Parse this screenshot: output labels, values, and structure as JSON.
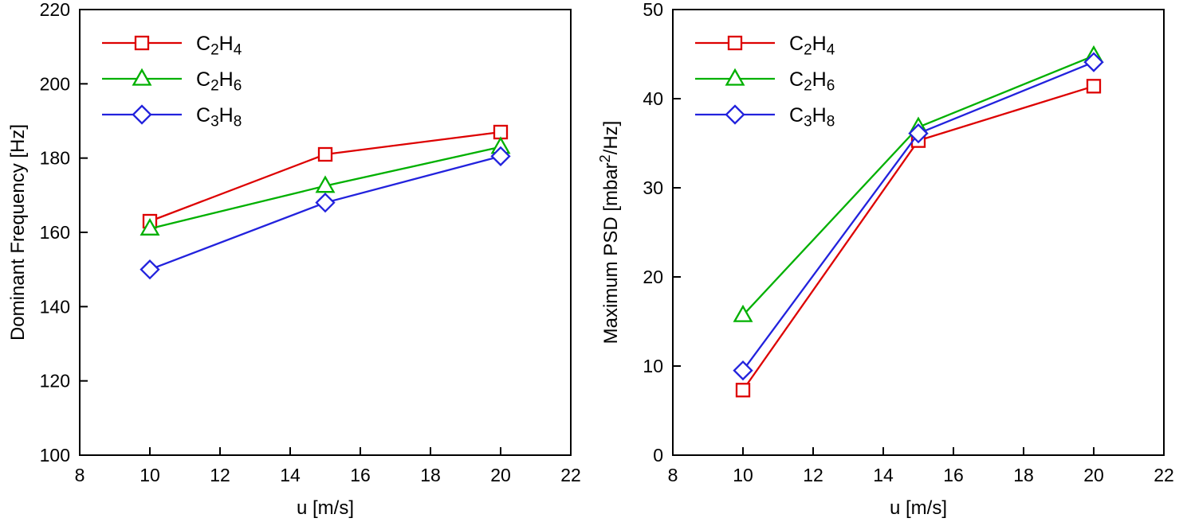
{
  "chart_data": [
    {
      "type": "line",
      "title": "",
      "xlabel": "u [m/s]",
      "ylabel": "Dominant Frequency [Hz]",
      "xlim": [
        8,
        22
      ],
      "ylim": [
        100,
        220
      ],
      "xticks": [
        8,
        10,
        12,
        14,
        16,
        18,
        20,
        22
      ],
      "yticks": [
        100,
        120,
        140,
        160,
        180,
        200,
        220
      ],
      "x": [
        10,
        15,
        20
      ],
      "series": [
        {
          "name": "C2H4",
          "marker": "square",
          "color": "#dd0000",
          "values": [
            163,
            181,
            187
          ]
        },
        {
          "name": "C2H6",
          "marker": "triangle",
          "color": "#00b000",
          "values": [
            161,
            172.5,
            183
          ]
        },
        {
          "name": "C3H8",
          "marker": "diamond",
          "color": "#2222dd",
          "values": [
            150,
            168,
            180.5
          ]
        }
      ],
      "legend_position": "top-left",
      "grid": false
    },
    {
      "type": "line",
      "title": "",
      "xlabel": "u [m/s]",
      "ylabel": "Maximum PSD [mbar^2/Hz]",
      "xlim": [
        8,
        22
      ],
      "ylim": [
        0,
        50
      ],
      "xticks": [
        8,
        10,
        12,
        14,
        16,
        18,
        20,
        22
      ],
      "yticks": [
        0,
        10,
        20,
        30,
        40,
        50
      ],
      "x": [
        10,
        15,
        20
      ],
      "series": [
        {
          "name": "C2H4",
          "marker": "square",
          "color": "#dd0000",
          "values": [
            7.3,
            35.3,
            41.4
          ]
        },
        {
          "name": "C2H6",
          "marker": "triangle",
          "color": "#00b000",
          "values": [
            15.7,
            36.8,
            44.8
          ]
        },
        {
          "name": "C3H8",
          "marker": "diamond",
          "color": "#2222dd",
          "values": [
            9.5,
            36.1,
            44.1
          ]
        }
      ],
      "legend_position": "top-left",
      "grid": false
    }
  ],
  "style": {
    "axis_color": "#000000",
    "background": "#ffffff",
    "marker_fill": "#ffffff"
  }
}
